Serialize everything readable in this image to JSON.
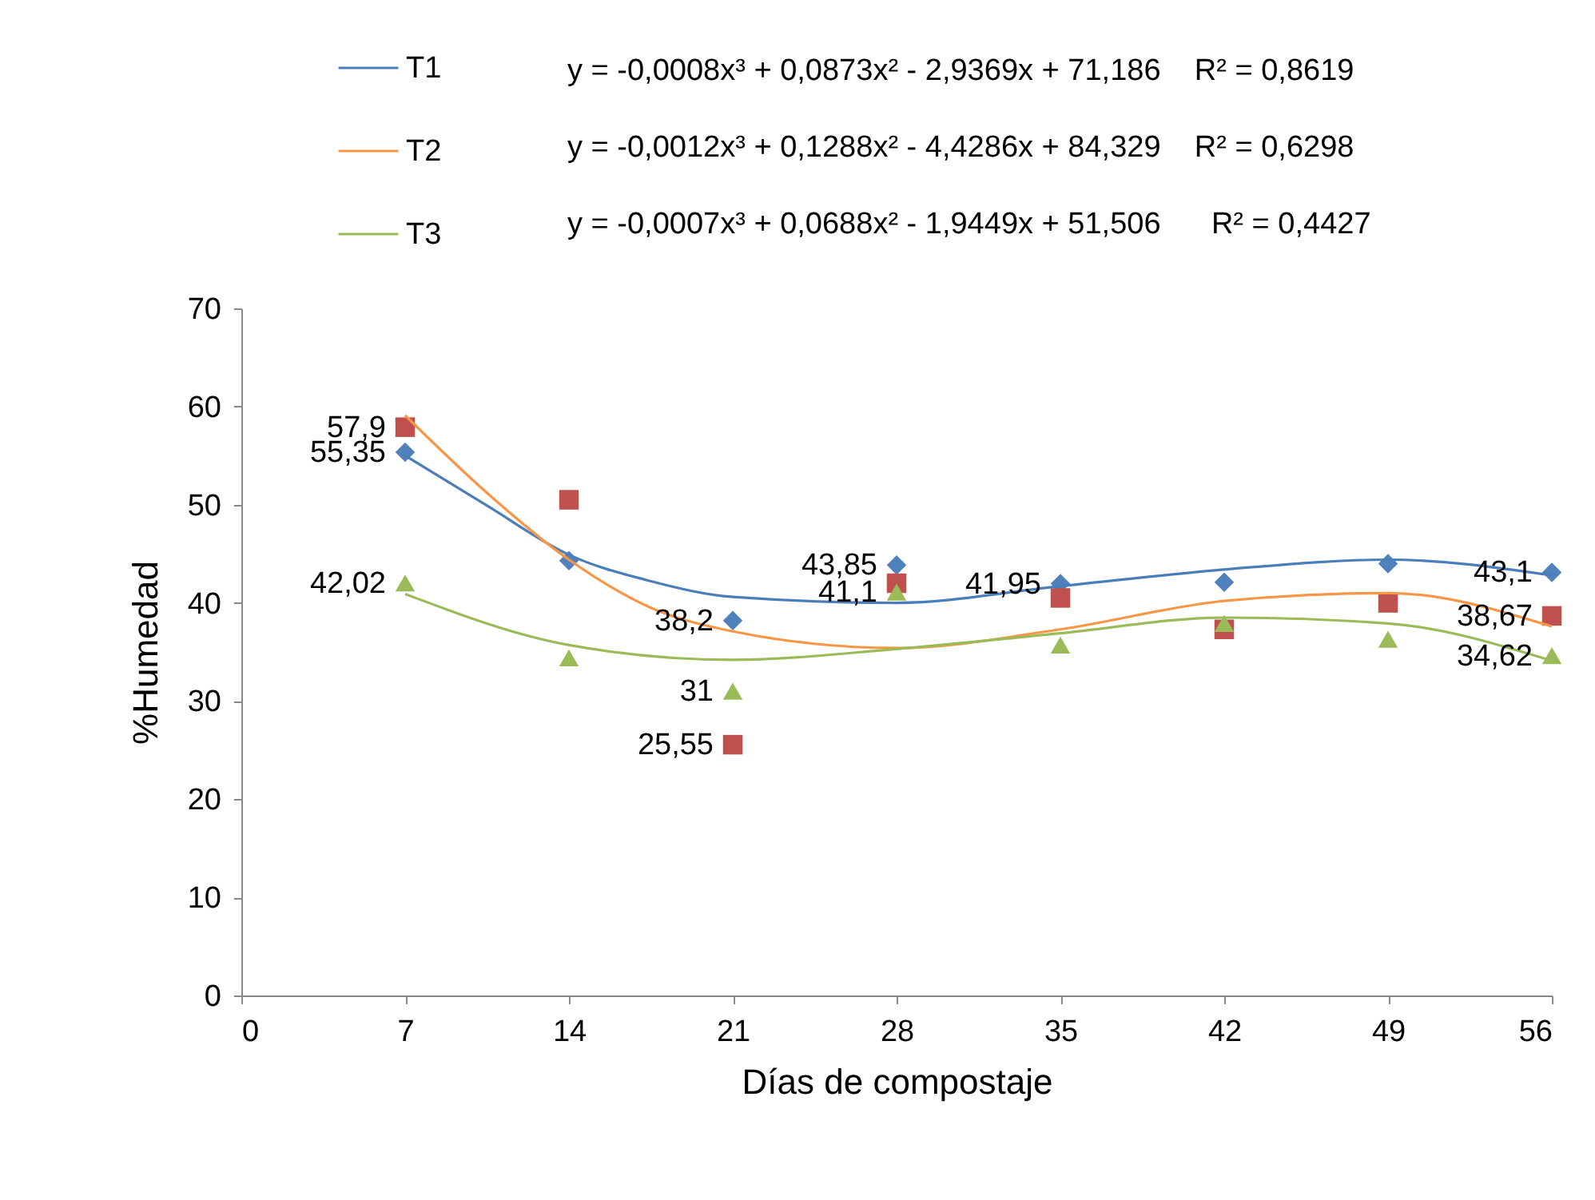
{
  "chart_data": {
    "type": "scatter",
    "xlabel": "Días de compostaje",
    "ylabel": "%Humedad",
    "xlim": [
      0,
      56
    ],
    "xticks": [
      0,
      7,
      14,
      21,
      28,
      35,
      42,
      49,
      56
    ],
    "ylim": [
      0,
      70
    ],
    "yticks": [
      0,
      10,
      20,
      30,
      40,
      50,
      60,
      70
    ],
    "grid": false,
    "legend": "top",
    "annotations": [
      "y = -0,0008x³ + 0,0873x² - 2,9369x + 71,186    R² = 0,8619",
      "y = -0,0012x³ + 0,1288x² - 4,4286x + 84,329    R² = 0,6298",
      "y = -0,0007x³ + 0,0688x² - 1,9449x + 51,506      R² = 0,4427"
    ],
    "series": [
      {
        "marker": "diamond",
        "color": "#4f81bd",
        "x": [
          7,
          14,
          21,
          28,
          35,
          42,
          49,
          56
        ],
        "values": [
          55.35,
          44.3,
          38.2,
          43.85,
          41.95,
          42.1,
          44.0,
          43.1
        ],
        "value_labels": [
          "55,35",
          null,
          "38,2",
          "43,85",
          "41,95",
          null,
          null,
          "43,1"
        ]
      },
      {
        "marker": "square",
        "color": "#c0504d",
        "x": [
          7,
          14,
          21,
          28,
          35,
          42,
          49,
          56
        ],
        "values": [
          57.9,
          50.5,
          25.55,
          42.0,
          40.5,
          37.3,
          40.0,
          38.67
        ],
        "value_labels": [
          "57,9",
          null,
          "25,55",
          null,
          null,
          null,
          null,
          "38,67"
        ]
      },
      {
        "marker": "triangle",
        "color": "#9bbb59",
        "x": [
          7,
          14,
          21,
          28,
          35,
          42,
          49,
          56
        ],
        "values": [
          42.02,
          34.4,
          31,
          41.1,
          35.7,
          37.9,
          36.3,
          34.62
        ],
        "value_labels": [
          "42,02",
          null,
          "31",
          "41,1",
          null,
          null,
          null,
          "34,62"
        ]
      },
      {
        "type": "line",
        "name": "T1",
        "color": "#4a7ebb",
        "marker": "none",
        "x": [
          7,
          10.5,
          14,
          17.5,
          21,
          28,
          35,
          42,
          49,
          56
        ],
        "values": [
          55.0,
          49.9,
          44.9,
          42.2,
          40.6,
          40.0,
          41.7,
          43.4,
          44.4,
          42.8
        ]
      },
      {
        "type": "line",
        "name": "T2",
        "color": "#f79646",
        "marker": "none",
        "x": [
          7,
          10.5,
          14,
          17.5,
          21,
          28,
          35,
          42,
          49,
          56
        ],
        "values": [
          59.1,
          51.2,
          44.4,
          39.5,
          37.1,
          35.4,
          37.3,
          40.2,
          41.0,
          37.6
        ]
      },
      {
        "type": "line",
        "name": "T3",
        "color": "#9bbb59",
        "marker": "none",
        "x": [
          7,
          14,
          21,
          28,
          35,
          42,
          49,
          56
        ],
        "values": [
          40.9,
          35.7,
          34.2,
          35.3,
          36.9,
          38.5,
          37.9,
          34.1
        ]
      }
    ]
  }
}
